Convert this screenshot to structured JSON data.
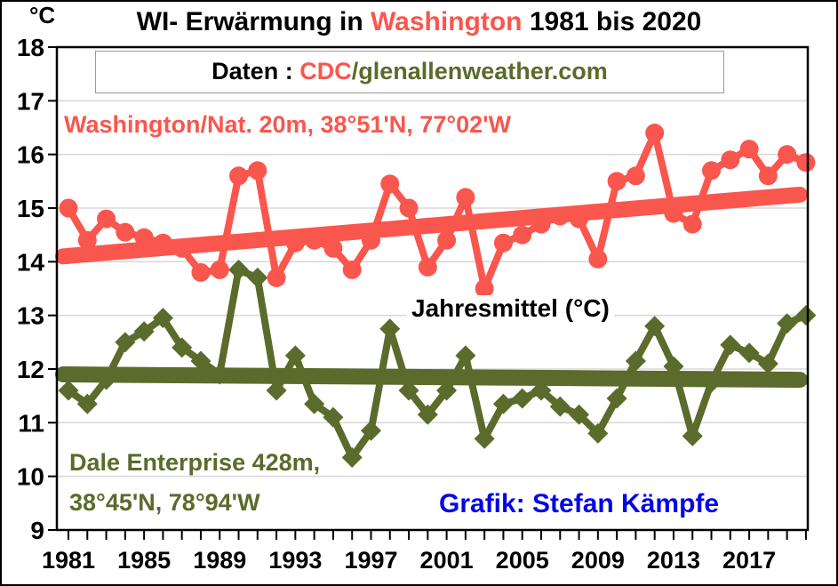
{
  "figure": {
    "title": {
      "prefix": "WI- Erwärmung in ",
      "highlight": "Washington",
      "suffix": " 1981 bis 2020"
    },
    "data_source": {
      "label": "Daten : ",
      "cdc": "CDC",
      "site": "/glenallenweather.com"
    },
    "unit_label": "°C",
    "red_station_label": "Washington/Nat. 20m, 38°51'N, 77°02'W",
    "green_station_label_line1": "Dale Enterprise 428m,",
    "green_station_label_line2": "38°45'N, 78°94'W",
    "center_label": "Jahresmittel (°C)",
    "credit": "Grafik: Stefan Kämpfe"
  },
  "colors": {
    "red_series": "#f9564e",
    "green_series": "#5a6b2b",
    "credit_blue": "#0505e6",
    "gridline": "#d9d9d9",
    "axis": "#000000",
    "background": "#ffffff"
  },
  "chart_data": {
    "type": "line",
    "title": "WI- Erwärmung in Washington 1981 bis 2020",
    "ylabel": "Jahresmittel (°C)",
    "y_unit": "°C",
    "ylim": [
      9,
      18
    ],
    "y_ticks": [
      9,
      10,
      11,
      12,
      13,
      14,
      15,
      16,
      17,
      18
    ],
    "grid": true,
    "legend_position": "inline-labels",
    "x": [
      1981,
      1982,
      1983,
      1984,
      1985,
      1986,
      1987,
      1988,
      1989,
      1990,
      1991,
      1992,
      1993,
      1994,
      1995,
      1996,
      1997,
      1998,
      1999,
      2000,
      2001,
      2002,
      2003,
      2004,
      2005,
      2006,
      2007,
      2008,
      2009,
      2010,
      2011,
      2012,
      2013,
      2014,
      2015,
      2016,
      2017,
      2018,
      2019,
      2020
    ],
    "x_tick_labels": [
      "1981",
      "1985",
      "1989",
      "1993",
      "1997",
      "2001",
      "2005",
      "2009",
      "2013",
      "2017"
    ],
    "series": [
      {
        "name": "Washington/Nat. 20m, 38°51'N, 77°02'W",
        "color": "#f9564e",
        "marker": "circle",
        "values": [
          15.0,
          14.4,
          14.8,
          14.55,
          14.45,
          14.35,
          14.25,
          13.8,
          13.85,
          15.6,
          15.7,
          13.7,
          14.35,
          14.4,
          14.25,
          13.85,
          14.4,
          15.45,
          15.0,
          13.9,
          14.4,
          15.2,
          13.5,
          14.35,
          14.5,
          14.7,
          14.85,
          14.8,
          14.05,
          15.5,
          15.6,
          16.4,
          14.9,
          14.7,
          15.7,
          15.9,
          16.1,
          15.6,
          16.0,
          15.85
        ]
      },
      {
        "name": "Dale Enterprise 428m, 38°45'N, 78°94'W",
        "color": "#5a6b2b",
        "marker": "diamond",
        "values": [
          11.6,
          11.35,
          11.8,
          12.5,
          12.7,
          12.95,
          12.4,
          12.15,
          11.9,
          13.85,
          13.7,
          11.6,
          12.25,
          11.35,
          11.1,
          10.35,
          10.85,
          12.75,
          11.6,
          11.15,
          11.6,
          12.25,
          10.7,
          11.35,
          11.45,
          11.6,
          11.3,
          11.15,
          10.8,
          11.45,
          12.15,
          12.8,
          12.05,
          10.75,
          11.75,
          12.45,
          12.3,
          12.1,
          12.85,
          13.0
        ]
      }
    ],
    "trend_lines": [
      {
        "series": "Washington/Nat.",
        "start_value": 14.1,
        "end_value": 15.25,
        "color": "#f9564e"
      },
      {
        "series": "Dale Enterprise",
        "start_value": 11.9,
        "end_value": 11.8,
        "color": "#5a6b2b"
      }
    ]
  }
}
